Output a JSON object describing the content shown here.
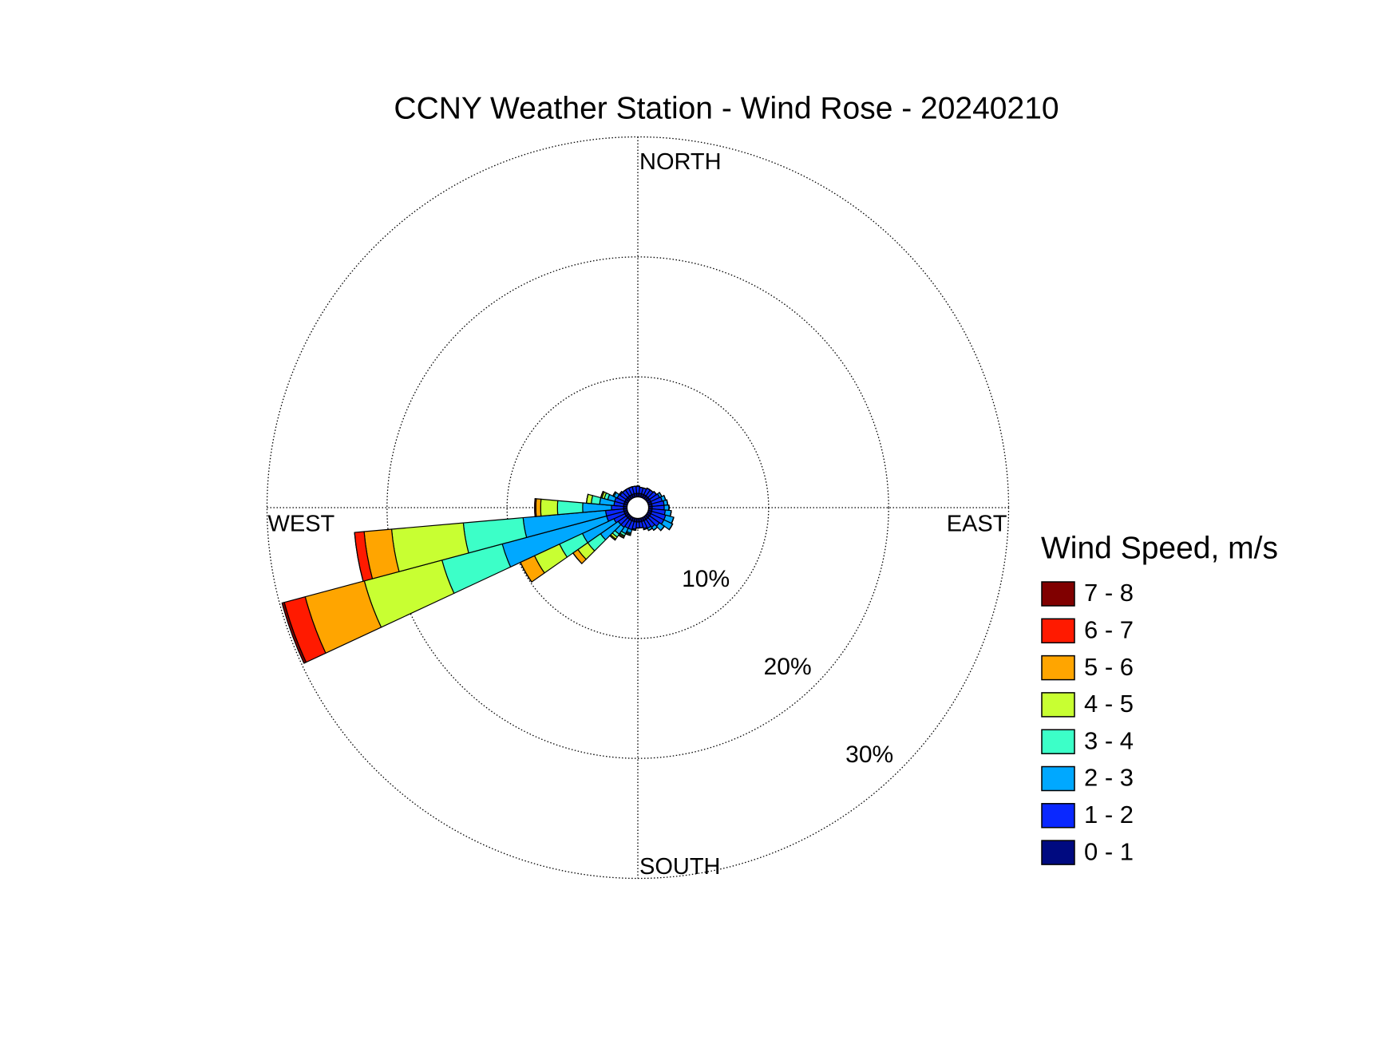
{
  "chart_data": {
    "type": "windrose",
    "title": "CCNY Weather Station - Wind Rose - 20240210",
    "direction_labels": [
      "NORTH",
      "EAST",
      "SOUTH",
      "WEST"
    ],
    "legend_title": "Wind Speed, m/s",
    "directions": [
      0,
      10,
      20,
      30,
      40,
      50,
      60,
      70,
      80,
      90,
      100,
      110,
      120,
      130,
      140,
      150,
      160,
      170,
      180,
      190,
      200,
      210,
      220,
      230,
      240,
      250,
      260,
      270,
      280,
      290,
      300,
      310,
      320,
      330,
      340,
      350
    ],
    "rlim": [
      0,
      30
    ],
    "rticks": [
      {
        "value": 10,
        "label": "10%"
      },
      {
        "value": 20,
        "label": "20%"
      },
      {
        "value": 30,
        "label": "30%"
      }
    ],
    "grid": true,
    "series": [
      {
        "name": "7 - 8",
        "color": "#800000",
        "values": [
          0,
          0,
          0,
          0,
          0,
          0,
          0,
          0,
          0,
          0,
          0,
          0,
          0,
          0,
          0,
          0,
          0,
          0,
          0,
          0,
          0,
          0,
          0,
          0,
          0,
          0.2,
          0,
          0,
          0,
          0,
          0,
          0,
          0,
          0,
          0,
          0
        ]
      },
      {
        "name": "6 - 7",
        "color": "#ff1a00",
        "values": [
          0,
          0,
          0,
          0,
          0,
          0,
          0,
          0,
          0,
          0,
          0,
          0,
          0,
          0,
          0,
          0,
          0,
          0,
          0,
          0,
          0,
          0,
          0,
          0,
          0,
          1.8,
          0.8,
          0.1,
          0,
          0,
          0,
          0,
          0,
          0,
          0,
          0
        ]
      },
      {
        "name": "5 - 6",
        "color": "#ffa500",
        "values": [
          0,
          0,
          0,
          0,
          0,
          0,
          0,
          0,
          0,
          0,
          0,
          0,
          0,
          0,
          0,
          0,
          0,
          0,
          0,
          0,
          0,
          0.1,
          0.1,
          0.5,
          1.3,
          5.1,
          2.3,
          0.4,
          0,
          0.1,
          0,
          0,
          0,
          0,
          0,
          0
        ]
      },
      {
        "name": "4 - 5",
        "color": "#c8ff32",
        "values": [
          0,
          0,
          0,
          0,
          0,
          0,
          0,
          0,
          0,
          0,
          0,
          0,
          0,
          0,
          0,
          0,
          0,
          0,
          0,
          0,
          0.1,
          0.1,
          0.2,
          1.0,
          2.3,
          6.7,
          6.0,
          1.4,
          0.4,
          0.2,
          0,
          0,
          0,
          0,
          0,
          0
        ]
      },
      {
        "name": "3 - 4",
        "color": "#3cffc8",
        "values": [
          0,
          0,
          0,
          0,
          0,
          0,
          0,
          0,
          0,
          0,
          0,
          0,
          0,
          0,
          0,
          0,
          0,
          0,
          0,
          0,
          0.1,
          0.2,
          0.3,
          1.3,
          2.1,
          5.2,
          5.0,
          2.1,
          0.7,
          0.3,
          0.1,
          0,
          0,
          0,
          0,
          0
        ]
      },
      {
        "name": "2 - 3",
        "color": "#00a8ff",
        "values": [
          0,
          0,
          0,
          0,
          0,
          0,
          0.2,
          0.3,
          0.3,
          0.4,
          0.5,
          0.7,
          0.8,
          0.5,
          0.3,
          0.2,
          0.1,
          0,
          0,
          0.1,
          0.3,
          0.5,
          0.7,
          1.8,
          2.9,
          9.0,
          6.9,
          2.4,
          1.2,
          0.6,
          0.3,
          0.1,
          0,
          0,
          0,
          0
        ]
      },
      {
        "name": "1 - 2",
        "color": "#0a28ff",
        "values": [
          0.6,
          0.5,
          0.5,
          0.6,
          0.6,
          0.7,
          0.8,
          0.9,
          1.0,
          1.0,
          1.1,
          1.2,
          1.2,
          1.0,
          0.8,
          0.7,
          0.6,
          0.5,
          0.5,
          0.6,
          0.7,
          0.7,
          0.8,
          0.8,
          1.0,
          1.5,
          1.5,
          1.0,
          0.8,
          0.8,
          0.7,
          0.6,
          0.6,
          0.6,
          0.6,
          0.6
        ]
      },
      {
        "name": "0 - 1",
        "color": "#000a80",
        "values": [
          0.3,
          0.3,
          0.3,
          0.3,
          0.3,
          0.3,
          0.3,
          0.3,
          0.3,
          0.3,
          0.3,
          0.3,
          0.3,
          0.3,
          0.3,
          0.3,
          0.3,
          0.3,
          0.3,
          0.3,
          0.3,
          0.3,
          0.3,
          0.3,
          0.3,
          0.3,
          0.3,
          0.3,
          0.3,
          0.3,
          0.3,
          0.3,
          0.3,
          0.3,
          0.3,
          0.3
        ]
      }
    ]
  }
}
